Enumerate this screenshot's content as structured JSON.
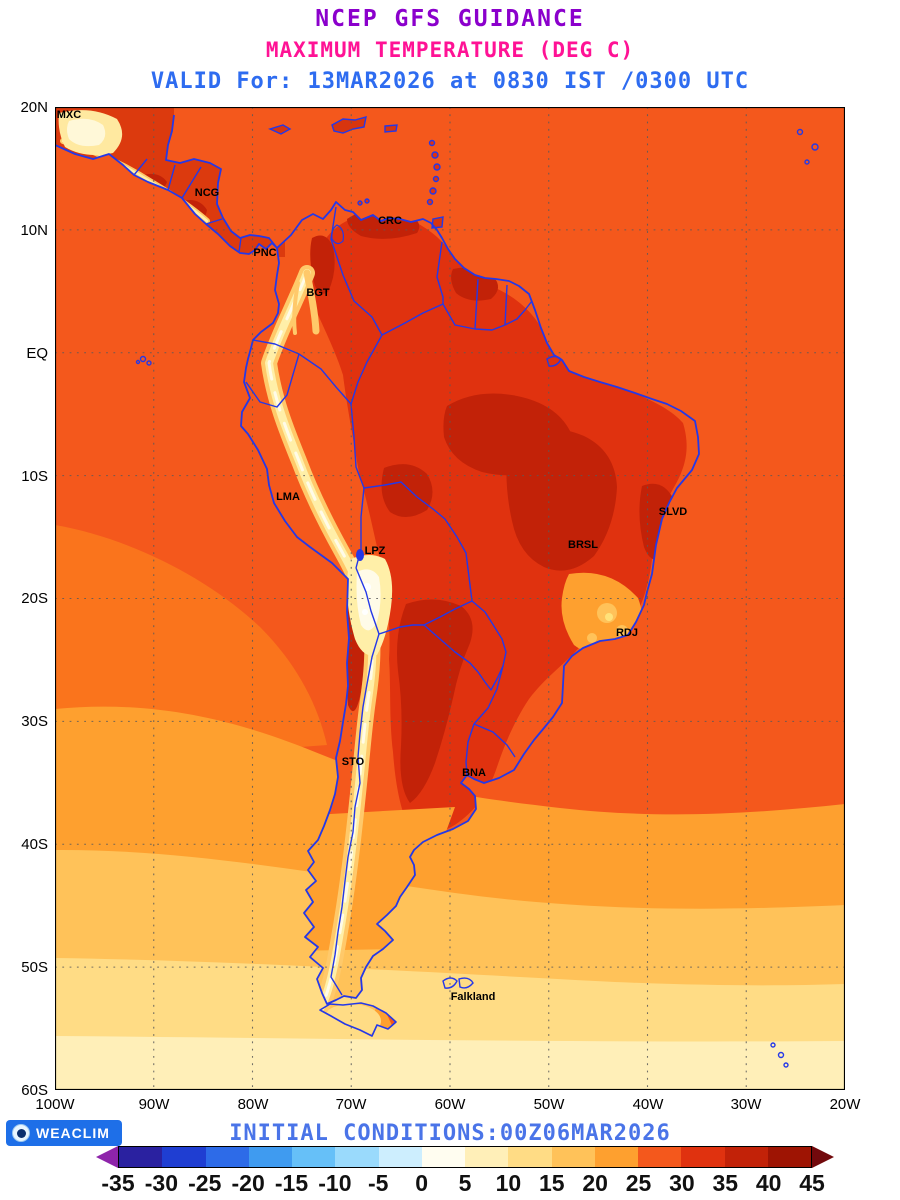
{
  "header": {
    "line1": "NCEP GFS GUIDANCE",
    "line2": "MAXIMUM TEMPERATURE (DEG C)",
    "line3": "VALID For: 13MAR2026 at 0830 IST /0300 UTC"
  },
  "map": {
    "axis_lat": [
      "20N",
      "10N",
      "EQ",
      "10S",
      "20S",
      "30S",
      "40S",
      "50S",
      "60S"
    ],
    "axis_lon": [
      "100W",
      "90W",
      "80W",
      "70W",
      "60W",
      "50W",
      "40W",
      "30W",
      "20W"
    ],
    "stations": [
      {
        "label": "MXC"
      },
      {
        "label": "NCG"
      },
      {
        "label": "CRC"
      },
      {
        "label": "PNC"
      },
      {
        "label": "BGT"
      },
      {
        "label": "LMA"
      },
      {
        "label": "LPZ"
      },
      {
        "label": "BRSL"
      },
      {
        "label": "SLVD"
      },
      {
        "label": "RDJ"
      },
      {
        "label": "STO"
      },
      {
        "label": "BNA"
      },
      {
        "label": "Falkland"
      }
    ]
  },
  "footer": {
    "logo_text": "WEACLIM",
    "initial_conditions": "INITIAL CONDITIONS:00Z06MAR2026"
  },
  "colorbar": {
    "unit": "DEG C",
    "ticks": [
      "-35",
      "-30",
      "-25",
      "-20",
      "-15",
      "-10",
      "-5",
      "0",
      "5",
      "10",
      "15",
      "20",
      "25",
      "30",
      "35",
      "40",
      "45"
    ],
    "segment_colors": [
      "#2A21A0",
      "#1F3ED2",
      "#2D6BE8",
      "#3F9BF0",
      "#66C0F8",
      "#9ADAFC",
      "#CDEEFE",
      "#FFFDF0",
      "#FFEFB8",
      "#FFDC85",
      "#FFC259",
      "#FEA02F",
      "#F4581C",
      "#E0320F",
      "#C22208",
      "#9E1403"
    ],
    "arrow_left_color": "#8E24AA",
    "arrow_right_color": "#72090C"
  }
}
